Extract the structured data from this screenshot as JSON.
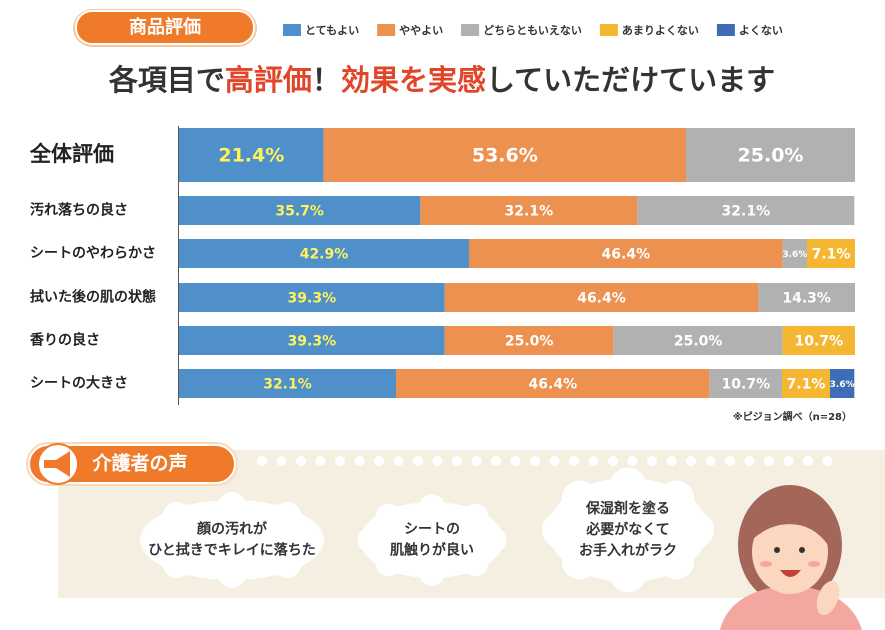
{
  "badge": "商品評価",
  "chart_data": {
    "type": "bar",
    "orientation": "horizontal",
    "stacked": true,
    "title": [
      {
        "text": "各項目で"
      },
      {
        "text": "高評価",
        "highlight": true
      },
      {
        "text": "！"
      },
      {
        "text": "効果を実感",
        "highlight": true
      },
      {
        "text": "していただけています"
      }
    ],
    "categories": [
      "全体評価",
      "汚れ落ちの良さ",
      "シートのやわらかさ",
      "拭いた後の肌の状態",
      "香りの良さ",
      "シートの大きさ"
    ],
    "xlim": [
      0,
      100
    ],
    "series": [
      {
        "name": "とてもよい",
        "color": "#4f8fca",
        "values": [
          21.4,
          35.7,
          42.9,
          39.3,
          39.3,
          32.1
        ],
        "value_labels": [
          "21.4%",
          "35.7%",
          "42.9%",
          "39.3%",
          "39.3%",
          "32.1%"
        ]
      },
      {
        "name": "ややよい",
        "color": "#ec9150",
        "values": [
          53.6,
          32.1,
          46.4,
          46.4,
          25.0,
          46.4
        ],
        "value_labels": [
          "53.6%",
          "32.1%",
          "46.4%",
          "46.4%",
          "25.0%",
          "46.4%"
        ]
      },
      {
        "name": "どちらともいえない",
        "color": "#b1b1b1",
        "values": [
          25.0,
          32.1,
          3.6,
          14.3,
          25.0,
          10.7
        ],
        "value_labels": [
          "25.0%",
          "32.1%",
          "3.6%",
          "14.3%",
          "25.0%",
          "10.7%"
        ]
      },
      {
        "name": "あまりよくない",
        "color": "#f5b731",
        "values": [
          null,
          null,
          7.1,
          null,
          10.7,
          7.1
        ],
        "value_labels": [
          null,
          null,
          "7.1%",
          null,
          "10.7%",
          "7.1%"
        ]
      },
      {
        "name": "よくない",
        "color": "#3f6db5",
        "values": [
          null,
          null,
          null,
          null,
          null,
          3.6
        ],
        "value_labels": [
          null,
          null,
          null,
          null,
          null,
          "3.6%"
        ]
      }
    ],
    "note": "※ピジョン調べ（n=28）"
  },
  "voices": {
    "title": "介護者の声",
    "items": [
      {
        "lines": [
          "顔の汚れが",
          "ひと拭きでキレイに落ちた"
        ]
      },
      {
        "lines": [
          "シートの",
          "肌触りが良い"
        ]
      },
      {
        "lines": [
          "保湿剤を塗る",
          "必要がなくて",
          "お手入れがラク"
        ]
      }
    ]
  }
}
